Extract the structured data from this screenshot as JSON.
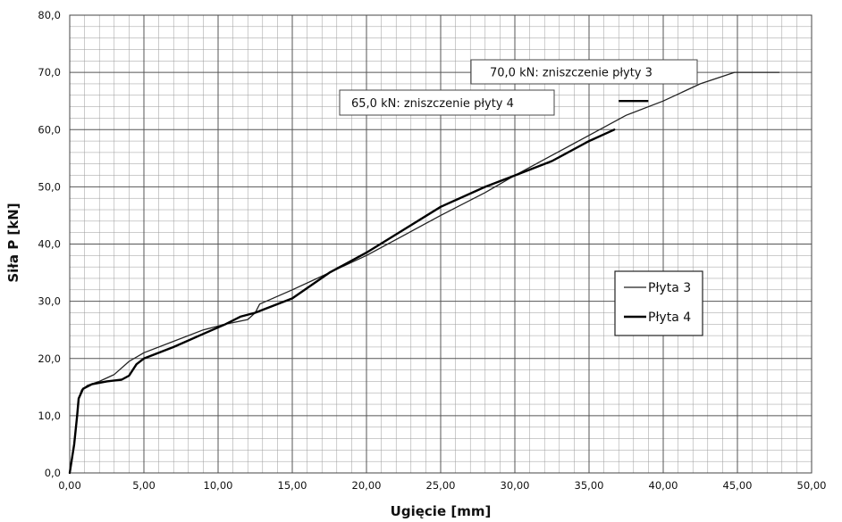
{
  "chart_data": {
    "type": "line",
    "title": "",
    "xlabel": "Ugięcie [mm]",
    "ylabel": "Siła P [kN]",
    "xlim": [
      0,
      50
    ],
    "ylim": [
      0,
      80
    ],
    "grid": true,
    "minor_grid": true,
    "legend_position": "right",
    "x_ticks": [
      "0,00",
      "5,00",
      "10,00",
      "15,00",
      "20,00",
      "25,00",
      "30,00",
      "35,00",
      "40,00",
      "45,00",
      "50,00"
    ],
    "y_ticks": [
      "0,0",
      "10,0",
      "20,0",
      "30,0",
      "40,0",
      "50,0",
      "60,0",
      "70,0",
      "80,0"
    ],
    "annotations": [
      {
        "text": "70,0 kN: zniszczenie płyty 3",
        "x": 45.0,
        "y": 70.0
      },
      {
        "text": "65,0 kN: zniszczenie płyty 4",
        "x": 39.0,
        "y": 65.0
      }
    ],
    "series": [
      {
        "name": "Płyta 3",
        "color": "#222222",
        "width": 1.3,
        "points": [
          [
            0,
            0
          ],
          [
            0.3,
            5
          ],
          [
            0.5,
            10
          ],
          [
            0.6,
            13
          ],
          [
            0.8,
            14.5
          ],
          [
            1.2,
            15.3
          ],
          [
            2,
            16
          ],
          [
            3,
            17.2
          ],
          [
            4,
            19.5
          ],
          [
            5,
            21
          ],
          [
            7,
            23
          ],
          [
            9,
            25
          ],
          [
            10.5,
            26
          ],
          [
            12,
            26.8
          ],
          [
            12.5,
            28
          ],
          [
            12.8,
            29.5
          ],
          [
            15,
            32
          ],
          [
            17.5,
            35
          ],
          [
            20,
            38
          ],
          [
            22.5,
            41.5
          ],
          [
            25,
            45
          ],
          [
            28,
            49
          ],
          [
            30,
            52
          ],
          [
            32.5,
            55.5
          ],
          [
            35,
            59
          ],
          [
            37.5,
            62.5
          ],
          [
            40,
            65
          ],
          [
            42.5,
            68
          ],
          [
            44.8,
            70
          ],
          [
            47.8,
            70
          ]
        ]
      },
      {
        "name": "Płyta 4",
        "color": "#000000",
        "width": 2.4,
        "points": [
          [
            0,
            0
          ],
          [
            0.3,
            5
          ],
          [
            0.5,
            10
          ],
          [
            0.6,
            13
          ],
          [
            0.9,
            14.7
          ],
          [
            1.5,
            15.5
          ],
          [
            2.5,
            16
          ],
          [
            3.5,
            16.3
          ],
          [
            4,
            17
          ],
          [
            4.5,
            19
          ],
          [
            5,
            20
          ],
          [
            7,
            22
          ],
          [
            9,
            24.3
          ],
          [
            10.5,
            26
          ],
          [
            11.5,
            27.3
          ],
          [
            12.5,
            28
          ],
          [
            13,
            28.5
          ],
          [
            15,
            30.5
          ],
          [
            17.5,
            35
          ],
          [
            20,
            38.5
          ],
          [
            22.5,
            42.5
          ],
          [
            25,
            46.5
          ],
          [
            28,
            50
          ],
          [
            30,
            52
          ],
          [
            32.5,
            54.5
          ],
          [
            35,
            58
          ],
          [
            36.7,
            60
          ]
        ]
      }
    ],
    "failure_lines": [
      {
        "series": "Płyta 4",
        "x": [
          37.0,
          39.0
        ],
        "y": 65.0
      }
    ]
  }
}
